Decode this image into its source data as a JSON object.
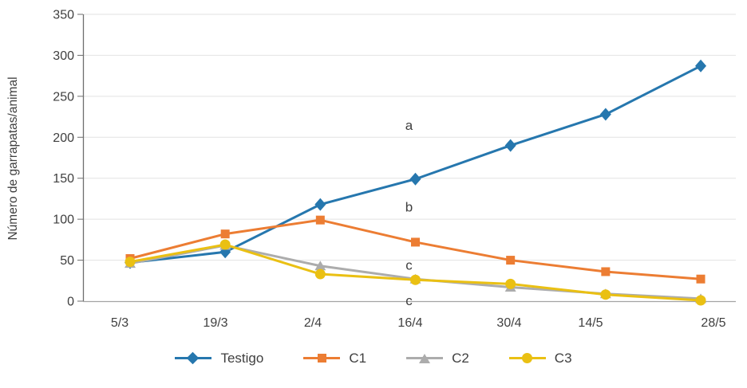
{
  "chart_data": {
    "type": "line",
    "title": "",
    "xlabel": "",
    "ylabel": "Número de garrapatas/animal",
    "ylim": [
      0,
      350
    ],
    "ytick_step": 50,
    "grid": "horizontal",
    "legend_position": "bottom",
    "categories": [
      "5/3",
      "19/3",
      "2/4",
      "16/4",
      "30/4",
      "14/5",
      "28/5"
    ],
    "series": [
      {
        "name": "Testigo",
        "marker": "diamond",
        "color": "#2677ae",
        "values": [
          47,
          60,
          118,
          149,
          190,
          228,
          287
        ]
      },
      {
        "name": "C1",
        "marker": "square",
        "color": "#ec7d33",
        "values": [
          52,
          82,
          99,
          72,
          50,
          36,
          27
        ]
      },
      {
        "name": "C2",
        "marker": "triangle",
        "color": "#acacac",
        "values": [
          46,
          68,
          43,
          27,
          17,
          9,
          3
        ]
      },
      {
        "name": "C3",
        "marker": "circle",
        "color": "#eac013",
        "values": [
          48,
          69,
          33,
          26,
          21,
          8,
          1
        ]
      }
    ],
    "annotations": [
      {
        "text": "a",
        "value": 215
      },
      {
        "text": "b",
        "value": 115
      },
      {
        "text": "c",
        "value": 44
      },
      {
        "text": "c",
        "value": 1
      }
    ]
  }
}
